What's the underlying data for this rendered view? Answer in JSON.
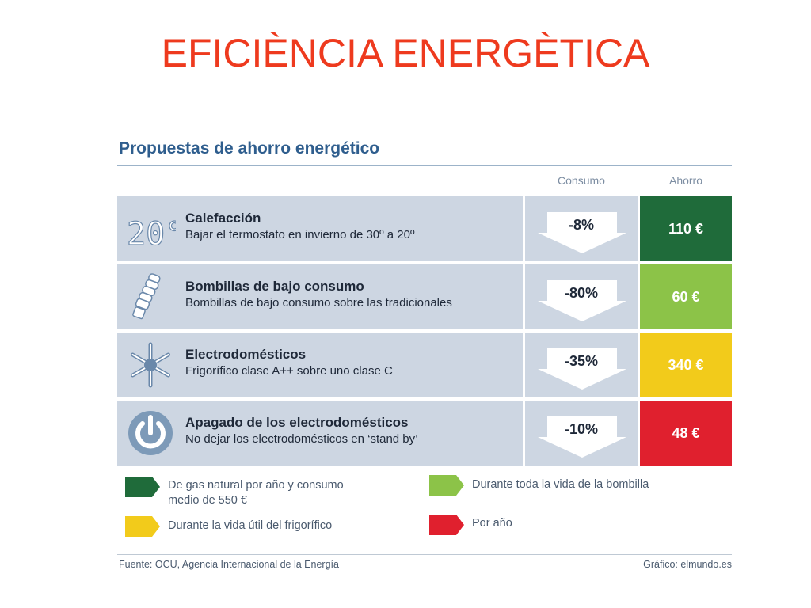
{
  "slide": {
    "title": "EFICIÈNCIA ENERGÈTICA"
  },
  "infographic": {
    "heading": "Propuestas de ahorro energético",
    "columns": {
      "consumo": "Consumo",
      "ahorro": "Ahorro"
    },
    "rows": [
      {
        "icon": "thermostat-20c-icon",
        "icon_text": "20°C",
        "title": "Calefacción",
        "subtitle": "Bajar el termostato en invierno de 30º a 20º",
        "consumo": "-8%",
        "ahorro": "110 €",
        "color": "#1f6b3a"
      },
      {
        "icon": "low-energy-bulb-icon",
        "title": "Bombillas de bajo consumo",
        "subtitle": "Bombillas de bajo consumo sobre las tradicionales",
        "consumo": "-80%",
        "ahorro": "60 €",
        "color": "#8cc348"
      },
      {
        "icon": "snowflake-icon",
        "title": "Electrodomésticos",
        "subtitle": "Frigorífico clase A++ sobre uno clase C",
        "consumo": "-35%",
        "ahorro": "340 €",
        "color": "#f2cb1b"
      },
      {
        "icon": "power-icon",
        "title": "Apagado de los electrodomésticos",
        "subtitle": "No dejar los electrodomésticos en ‘stand by’",
        "consumo": "-10%",
        "ahorro": "48 €",
        "color": "#e0202e"
      }
    ],
    "legend": [
      {
        "color": "#1f6b3a",
        "line1": "De gas natural por año y consumo",
        "line2": "medio de 550 €"
      },
      {
        "color": "#8cc348",
        "line1": "Durante toda la vida de la bombilla",
        "line2": ""
      },
      {
        "color": "#f2cb1b",
        "line1": "Durante la vida útil del frigorífico",
        "line2": ""
      },
      {
        "color": "#e0202e",
        "line1": "Por año",
        "line2": ""
      }
    ],
    "source": "Fuente: OCU, Agencia Internacional de la Energía",
    "credit": "Gráfico: elmundo.es"
  }
}
